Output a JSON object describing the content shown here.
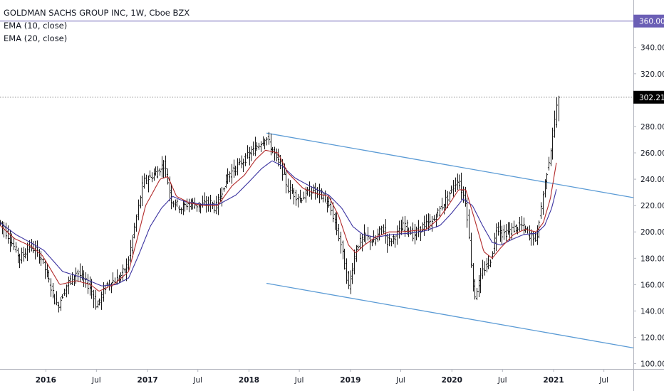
{
  "legend": {
    "title": "GOLDMAN SACHS GROUP INC, 1W, Cboe BZX",
    "ema10": "EMA (10, close)",
    "ema20": "EMA (20, close)"
  },
  "colors": {
    "ema10": "#b22a2a",
    "ema20": "#3a32a0",
    "channel": "#5b9bd5",
    "candle": "#1a1a1a",
    "alert_line": "#6b5fb5",
    "price_tag_bg": "#000000",
    "alert_tag_bg": "#6b5fb5",
    "axis_text": "#131722"
  },
  "chart_data": {
    "type": "line",
    "title": "GOLDMAN SACHS GROUP INC, 1W, Cboe BZX",
    "y_range": [
      96,
      376
    ],
    "y_ticks": [
      "100.00",
      "120.00",
      "140.00",
      "160.00",
      "180.00",
      "200.00",
      "220.00",
      "240.00",
      "260.00",
      "280.00",
      "300.00",
      "320.00",
      "340.00",
      "360.00"
    ],
    "x_range": [
      "2015-07-20",
      "2021-10-15"
    ],
    "x_ticks": [
      {
        "label": "2016",
        "date": "2016-01-01",
        "bold": true
      },
      {
        "label": "Jul",
        "date": "2016-07-01",
        "bold": false
      },
      {
        "label": "2017",
        "date": "2017-01-01",
        "bold": true
      },
      {
        "label": "Jul",
        "date": "2017-07-01",
        "bold": false
      },
      {
        "label": "2018",
        "date": "2018-01-01",
        "bold": true
      },
      {
        "label": "Jul",
        "date": "2018-07-01",
        "bold": false
      },
      {
        "label": "2019",
        "date": "2019-01-01",
        "bold": true
      },
      {
        "label": "Jul",
        "date": "2019-07-01",
        "bold": false
      },
      {
        "label": "2020",
        "date": "2020-01-01",
        "bold": true
      },
      {
        "label": "Jul",
        "date": "2020-07-01",
        "bold": false
      },
      {
        "label": "2021",
        "date": "2021-01-01",
        "bold": true
      },
      {
        "label": "Jul",
        "date": "2021-07-01",
        "bold": false
      }
    ],
    "price_anchors": [
      [
        "2015-07-20",
        207
      ],
      [
        "2015-08-20",
        196
      ],
      [
        "2015-09-28",
        180
      ],
      [
        "2015-11-05",
        190
      ],
      [
        "2015-12-15",
        180
      ],
      [
        "2016-02-10",
        143
      ],
      [
        "2016-03-15",
        160
      ],
      [
        "2016-04-20",
        170
      ],
      [
        "2016-06-10",
        157
      ],
      [
        "2016-06-30",
        143
      ],
      [
        "2016-08-05",
        160
      ],
      [
        "2016-09-20",
        165
      ],
      [
        "2016-10-20",
        175
      ],
      [
        "2016-11-20",
        210
      ],
      [
        "2016-12-15",
        238
      ],
      [
        "2017-02-01",
        245
      ],
      [
        "2017-03-01",
        252
      ],
      [
        "2017-03-25",
        225
      ],
      [
        "2017-05-01",
        218
      ],
      [
        "2017-06-01",
        222
      ],
      [
        "2017-07-01",
        220
      ],
      [
        "2017-08-15",
        222
      ],
      [
        "2017-09-01",
        218
      ],
      [
        "2017-10-15",
        243
      ],
      [
        "2017-12-01",
        252
      ],
      [
        "2018-01-15",
        262
      ],
      [
        "2018-03-01",
        272
      ],
      [
        "2018-03-25",
        262
      ],
      [
        "2018-04-25",
        250
      ],
      [
        "2018-05-20",
        233
      ],
      [
        "2018-07-01",
        225
      ],
      [
        "2018-08-15",
        232
      ],
      [
        "2018-09-20",
        228
      ],
      [
        "2018-10-25",
        215
      ],
      [
        "2018-11-25",
        192
      ],
      [
        "2018-12-24",
        158
      ],
      [
        "2019-01-20",
        188
      ],
      [
        "2019-02-20",
        197
      ],
      [
        "2019-03-25",
        192
      ],
      [
        "2019-04-25",
        204
      ],
      [
        "2019-05-15",
        192
      ],
      [
        "2019-06-15",
        198
      ],
      [
        "2019-07-15",
        206
      ],
      [
        "2019-08-15",
        197
      ],
      [
        "2019-09-20",
        205
      ],
      [
        "2019-10-20",
        207
      ],
      [
        "2019-11-20",
        218
      ],
      [
        "2019-12-20",
        228
      ],
      [
        "2020-01-20",
        240
      ],
      [
        "2020-02-20",
        222
      ],
      [
        "2020-03-20",
        150
      ],
      [
        "2020-04-20",
        170
      ],
      [
        "2020-05-20",
        180
      ],
      [
        "2020-06-10",
        205
      ],
      [
        "2020-07-01",
        198
      ],
      [
        "2020-08-05",
        202
      ],
      [
        "2020-09-05",
        205
      ],
      [
        "2020-10-05",
        198
      ],
      [
        "2020-10-30",
        195
      ],
      [
        "2020-11-20",
        225
      ],
      [
        "2020-12-20",
        262
      ],
      [
        "2021-01-08",
        290
      ],
      [
        "2021-01-13",
        300.5
      ]
    ],
    "ema10_anchors": [
      [
        "2015-07-20",
        205
      ],
      [
        "2015-09-10",
        195
      ],
      [
        "2015-11-10",
        189
      ],
      [
        "2015-12-20",
        182
      ],
      [
        "2016-02-20",
        160
      ],
      [
        "2016-04-20",
        163
      ],
      [
        "2016-06-10",
        160
      ],
      [
        "2016-07-10",
        155
      ],
      [
        "2016-09-01",
        160
      ],
      [
        "2016-10-25",
        170
      ],
      [
        "2016-11-25",
        195
      ],
      [
        "2016-12-25",
        220
      ],
      [
        "2017-02-15",
        240
      ],
      [
        "2017-03-15",
        242
      ],
      [
        "2017-04-15",
        227
      ],
      [
        "2017-06-01",
        222
      ],
      [
        "2017-07-20",
        220
      ],
      [
        "2017-09-10",
        220
      ],
      [
        "2017-11-01",
        235
      ],
      [
        "2017-12-15",
        243
      ],
      [
        "2018-01-25",
        255
      ],
      [
        "2018-03-01",
        262
      ],
      [
        "2018-04-15",
        260
      ],
      [
        "2018-05-20",
        245
      ],
      [
        "2018-07-15",
        233
      ],
      [
        "2018-09-01",
        229
      ],
      [
        "2018-10-15",
        227
      ],
      [
        "2018-11-20",
        212
      ],
      [
        "2018-12-25",
        190
      ],
      [
        "2019-01-20",
        184
      ],
      [
        "2019-02-20",
        190
      ],
      [
        "2019-04-01",
        196
      ],
      [
        "2019-05-20",
        200
      ],
      [
        "2019-07-01",
        200
      ],
      [
        "2019-08-20",
        201
      ],
      [
        "2019-10-01",
        202
      ],
      [
        "2019-11-15",
        210
      ],
      [
        "2019-12-25",
        222
      ],
      [
        "2020-01-25",
        232
      ],
      [
        "2020-02-20",
        232
      ],
      [
        "2020-03-25",
        208
      ],
      [
        "2020-04-25",
        185
      ],
      [
        "2020-05-25",
        180
      ],
      [
        "2020-06-25",
        188
      ],
      [
        "2020-08-10",
        198
      ],
      [
        "2020-09-20",
        202
      ],
      [
        "2020-10-30",
        200
      ],
      [
        "2020-11-25",
        207
      ],
      [
        "2020-12-20",
        225
      ],
      [
        "2021-01-13",
        255
      ]
    ],
    "ema20_anchors": [
      [
        "2015-07-20",
        207
      ],
      [
        "2015-09-15",
        198
      ],
      [
        "2015-11-15",
        191
      ],
      [
        "2015-12-25",
        186
      ],
      [
        "2016-03-01",
        170
      ],
      [
        "2016-05-01",
        166
      ],
      [
        "2016-07-20",
        159
      ],
      [
        "2016-09-10",
        160
      ],
      [
        "2016-10-25",
        165
      ],
      [
        "2016-12-01",
        183
      ],
      [
        "2017-01-10",
        204
      ],
      [
        "2017-02-20",
        218
      ],
      [
        "2017-04-01",
        227
      ],
      [
        "2017-05-15",
        223
      ],
      [
        "2017-07-15",
        221
      ],
      [
        "2017-09-15",
        221
      ],
      [
        "2017-11-15",
        228
      ],
      [
        "2018-01-01",
        238
      ],
      [
        "2018-02-15",
        248
      ],
      [
        "2018-03-25",
        254
      ],
      [
        "2018-05-01",
        250
      ],
      [
        "2018-06-15",
        241
      ],
      [
        "2018-08-15",
        234
      ],
      [
        "2018-10-15",
        228
      ],
      [
        "2018-12-01",
        218
      ],
      [
        "2019-01-10",
        204
      ],
      [
        "2019-02-15",
        198
      ],
      [
        "2019-04-01",
        196
      ],
      [
        "2019-06-01",
        198
      ],
      [
        "2019-08-01",
        199
      ],
      [
        "2019-10-01",
        201
      ],
      [
        "2019-11-20",
        205
      ],
      [
        "2019-12-30",
        214
      ],
      [
        "2020-02-10",
        225
      ],
      [
        "2020-03-15",
        220
      ],
      [
        "2020-04-20",
        205
      ],
      [
        "2020-05-25",
        192
      ],
      [
        "2020-06-25",
        190
      ],
      [
        "2020-08-01",
        194
      ],
      [
        "2020-09-15",
        198
      ],
      [
        "2020-11-01",
        199
      ],
      [
        "2020-11-30",
        205
      ],
      [
        "2020-12-25",
        218
      ],
      [
        "2021-01-13",
        234
      ]
    ],
    "channel": {
      "upper": [
        [
          "2018-03-05",
          275
        ],
        [
          "2021-10-15",
          226
        ]
      ],
      "lower": [
        [
          "2018-03-05",
          161
        ],
        [
          "2021-10-15",
          112
        ]
      ]
    },
    "last_price": 302.21,
    "last_price_label": "302.21",
    "alert_level": 360,
    "alert_label": "360.00",
    "series": [
      {
        "name": "EMA (10, close)"
      },
      {
        "name": "EMA (20, close)"
      }
    ]
  }
}
